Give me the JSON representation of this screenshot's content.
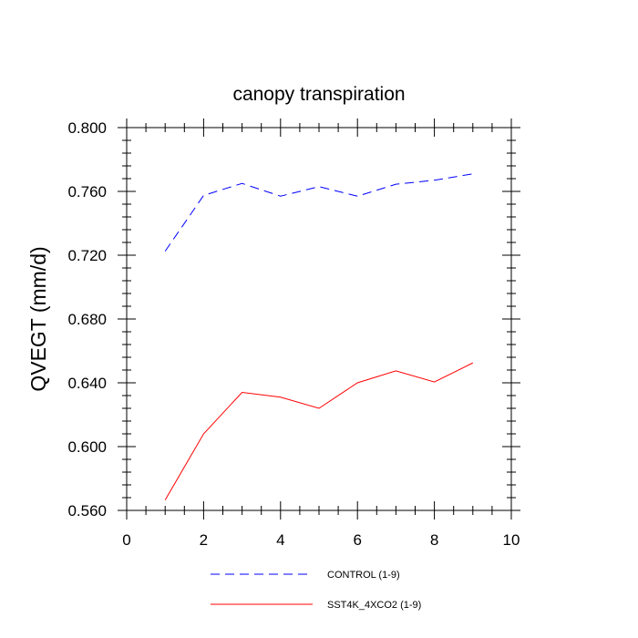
{
  "chart_data": {
    "type": "line",
    "title": "canopy transpiration",
    "xlabel": "",
    "ylabel": "QVEGT  (mm/d)",
    "xlim": [
      0,
      10
    ],
    "ylim": [
      0.56,
      0.8
    ],
    "xticks": [
      0,
      2,
      4,
      6,
      8,
      10
    ],
    "xtick_labels": [
      "0",
      "2",
      "4",
      "6",
      "8",
      "10"
    ],
    "yticks": [
      0.56,
      0.6,
      0.64,
      0.68,
      0.72,
      0.76,
      0.8
    ],
    "ytick_labels": [
      "0.560",
      "0.600",
      "0.640",
      "0.680",
      "0.720",
      "0.760",
      "0.800"
    ],
    "grid": false,
    "legend_position": "bottom",
    "x": [
      1,
      2,
      3,
      4,
      5,
      6,
      7,
      8,
      9
    ],
    "series": [
      {
        "name": "CONTROL (1-9)",
        "color": "#0000ff",
        "dash": "dashed",
        "values": [
          0.7225,
          0.7575,
          0.765,
          0.757,
          0.763,
          0.757,
          0.7645,
          0.767,
          0.771
        ]
      },
      {
        "name": "SST4K_4XCO2 (1-9)",
        "color": "#ff0000",
        "dash": "solid",
        "values": [
          0.5665,
          0.608,
          0.634,
          0.631,
          0.624,
          0.64,
          0.6475,
          0.6405,
          0.6525
        ]
      }
    ]
  }
}
